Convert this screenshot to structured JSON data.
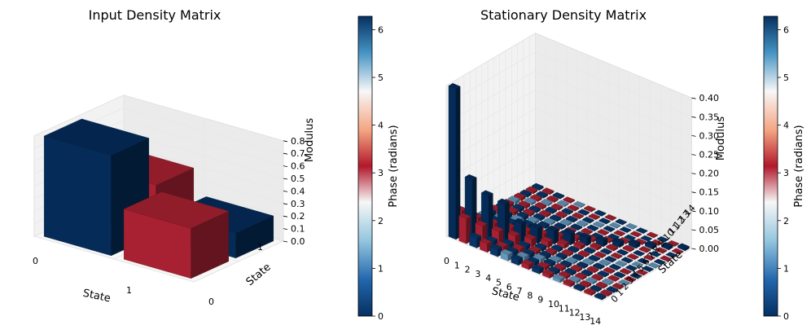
{
  "chart_data": [
    {
      "type": "bar3d",
      "title": "Input Density Matrix",
      "xlabel": "State",
      "ylabel": "State",
      "zlabel": "Modulus",
      "x_ticks": [
        "0",
        "1"
      ],
      "y_ticks": [
        "0",
        "1"
      ],
      "zlim": [
        0,
        0.8
      ],
      "z_ticks": [
        "0.0",
        "0.1",
        "0.2",
        "0.3",
        "0.4",
        "0.5",
        "0.6",
        "0.7",
        "0.8"
      ],
      "bars": [
        {
          "x": 0,
          "y": 0,
          "modulus": 0.8,
          "phase": 0.0
        },
        {
          "x": 1,
          "y": 0,
          "modulus": 0.4,
          "phase": 3.1
        },
        {
          "x": 0,
          "y": 1,
          "modulus": 0.4,
          "phase": 3.1
        },
        {
          "x": 1,
          "y": 1,
          "modulus": 0.2,
          "phase": 0.0
        }
      ],
      "colorbar": {
        "label": "Phase (radians)",
        "range": [
          0,
          6.28
        ],
        "ticks": [
          "0",
          "1",
          "2",
          "3",
          "4",
          "5",
          "6"
        ]
      }
    },
    {
      "type": "bar3d",
      "title": "Stationary Density Matrix",
      "xlabel": "State",
      "ylabel": "State",
      "zlabel": "Modulus",
      "x_ticks": [
        "0",
        "1",
        "2",
        "3",
        "4",
        "5",
        "6",
        "7",
        "8",
        "9",
        "10",
        "11",
        "12",
        "13",
        "14"
      ],
      "y_ticks": [
        "0",
        "1",
        "2",
        "3",
        "4",
        "5",
        "6",
        "7",
        "8",
        "9",
        "10",
        "11",
        "12",
        "13",
        "14"
      ],
      "zlim": [
        0,
        0.4
      ],
      "z_ticks": [
        "0.00",
        "0.05",
        "0.10",
        "0.15",
        "0.20",
        "0.25",
        "0.30",
        "0.35",
        "0.40"
      ],
      "diagonal_modulus": [
        0.4,
        0.16,
        0.12,
        0.1,
        0.05,
        0.04,
        0.035,
        0.03,
        0.02,
        0.015,
        0.012,
        0.01,
        0.008,
        0.006,
        0.005
      ],
      "offdiag_modulus_scale": 0.035,
      "phase_pattern": "checkerboard: alternating between ~0 (blue) and ~pi (red) by (x+y) parity",
      "colorbar": {
        "label": "Phase (radians)",
        "range": [
          0,
          6.28
        ],
        "ticks": [
          "0",
          "1",
          "2",
          "3",
          "4",
          "5",
          "6"
        ]
      }
    }
  ]
}
